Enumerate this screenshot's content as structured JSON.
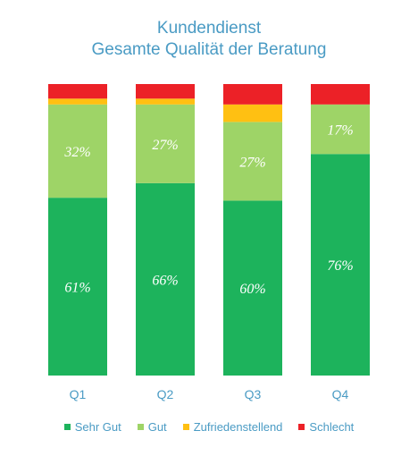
{
  "chart_data": {
    "type": "bar",
    "stacked": true,
    "title": [
      "Kundendienst",
      "Gesamte Qualität der Beratung"
    ],
    "categories": [
      "Q1",
      "Q2",
      "Q3",
      "Q4"
    ],
    "series": [
      {
        "name": "Sehr Gut",
        "color": "#1db35c",
        "values": [
          61,
          66,
          60,
          76
        ],
        "labels": [
          "61%",
          "66%",
          "60%",
          "76%"
        ]
      },
      {
        "name": "Gut",
        "color": "#9ed467",
        "values": [
          32,
          27,
          27,
          17
        ],
        "labels": [
          "32%",
          "27%",
          "27%",
          "17%"
        ]
      },
      {
        "name": "Zufriedenstellend",
        "color": "#ffc012",
        "values": [
          2,
          2,
          6,
          0
        ],
        "labels": [
          "",
          "",
          "",
          ""
        ]
      },
      {
        "name": "Schlecht",
        "color": "#ec2127",
        "values": [
          5,
          5,
          7,
          7
        ],
        "labels": [
          "",
          "",
          "",
          ""
        ]
      }
    ],
    "legend": "bottom",
    "grid": false
  }
}
